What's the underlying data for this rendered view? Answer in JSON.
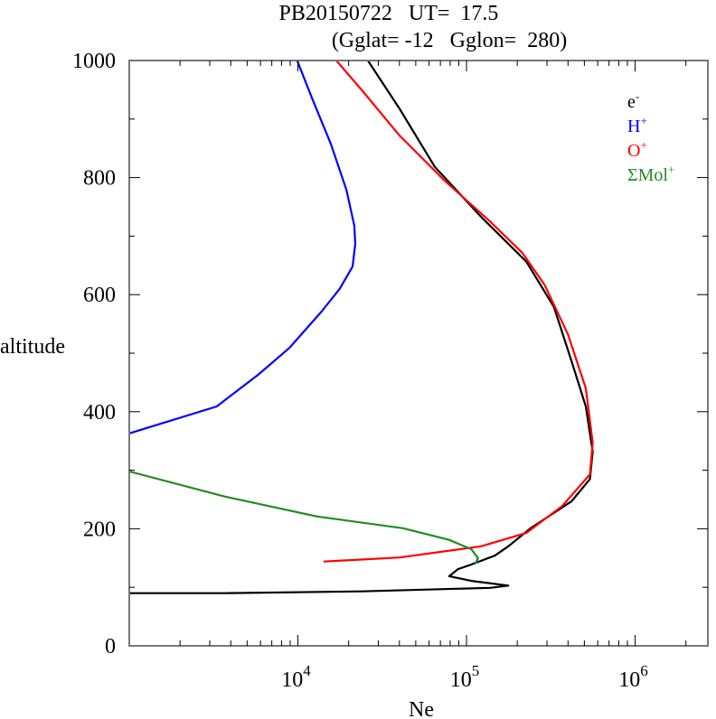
{
  "chart_data": {
    "type": "line",
    "title_line1": "PB20150722   UT=  17.5",
    "title_line2": "(Gglat= -12   Gglon=  280)",
    "xlabel": "Ne",
    "ylabel": "altitude",
    "xscale": "log",
    "xlim": [
      1000,
      2700000
    ],
    "ylim": [
      0,
      1000
    ],
    "x_ticks": [
      {
        "value": 10000,
        "base": "10",
        "exp": "4"
      },
      {
        "value": 100000,
        "base": "10",
        "exp": "5"
      },
      {
        "value": 1000000,
        "base": "10",
        "exp": "6"
      }
    ],
    "y_ticks": [
      {
        "value": 0,
        "label": "0"
      },
      {
        "value": 200,
        "label": "200"
      },
      {
        "value": 400,
        "label": "400"
      },
      {
        "value": 600,
        "label": "600"
      },
      {
        "value": 800,
        "label": "800"
      },
      {
        "value": 1000,
        "label": "1000"
      }
    ],
    "y_minor_ticks": [
      100,
      300,
      500,
      700,
      900
    ],
    "grid": false,
    "legend_position": "top-right",
    "series": [
      {
        "name": "e-",
        "legend_base": "e",
        "legend_sup": "-",
        "color": "#000000",
        "points": [
          [
            26000,
            1000
          ],
          [
            40000,
            918
          ],
          [
            65000,
            818
          ],
          [
            122000,
            733
          ],
          [
            227000,
            656
          ],
          [
            330000,
            579
          ],
          [
            420000,
            486
          ],
          [
            510000,
            409
          ],
          [
            560000,
            332
          ],
          [
            540000,
            285
          ],
          [
            420000,
            247
          ],
          [
            240000,
            201
          ],
          [
            177000,
            170
          ],
          [
            147000,
            154
          ],
          [
            107000,
            139
          ],
          [
            89000,
            131
          ],
          [
            79000,
            119
          ],
          [
            107000,
            111
          ],
          [
            177000,
            103
          ],
          [
            138000,
            99
          ],
          [
            24000,
            93
          ],
          [
            3700,
            90
          ],
          [
            1000,
            90
          ]
        ]
      },
      {
        "name": "H+",
        "legend_base": "H",
        "legend_sup": "+",
        "color": "#0000ff",
        "points": [
          [
            9900,
            1000
          ],
          [
            12200,
            934
          ],
          [
            15700,
            857
          ],
          [
            19400,
            779
          ],
          [
            21600,
            718
          ],
          [
            21900,
            687
          ],
          [
            21100,
            648
          ],
          [
            17700,
            610
          ],
          [
            13800,
            571
          ],
          [
            8900,
            509
          ],
          [
            5800,
            463
          ],
          [
            3300,
            409
          ],
          [
            1000,
            363
          ]
        ]
      },
      {
        "name": "O+",
        "legend_base": "O",
        "legend_sup": "+",
        "color": "#ff0000",
        "points": [
          [
            16900,
            1000
          ],
          [
            24000,
            949
          ],
          [
            40000,
            872
          ],
          [
            74000,
            795
          ],
          [
            138000,
            725
          ],
          [
            215000,
            671
          ],
          [
            290000,
            617
          ],
          [
            400000,
            532
          ],
          [
            510000,
            440
          ],
          [
            560000,
            347
          ],
          [
            540000,
            293
          ],
          [
            370000,
            239
          ],
          [
            227000,
            193
          ],
          [
            122000,
            170
          ],
          [
            40000,
            151
          ],
          [
            14200,
            144
          ]
        ]
      },
      {
        "name": "ΣMol+",
        "legend_base": "ΣMol",
        "legend_sup": "+",
        "color": "#228b22",
        "points": [
          [
            1000,
            298
          ],
          [
            3700,
            255
          ],
          [
            13000,
            221
          ],
          [
            42000,
            201
          ],
          [
            79000,
            181
          ],
          [
            107000,
            165
          ],
          [
            117000,
            150
          ],
          [
            113000,
            140
          ]
        ]
      }
    ]
  }
}
